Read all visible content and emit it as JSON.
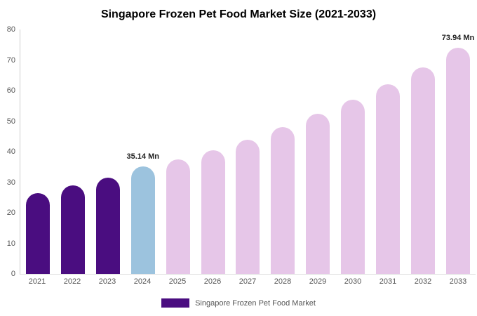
{
  "title": "Singapore Frozen Pet Food Market Size (2021-2033)",
  "legend": {
    "label": "Singapore Frozen Pet Food Market",
    "color": "#4a0d80"
  },
  "colors": {
    "historical": "#4a0d80",
    "current": "#9cc3de",
    "forecast": "#e6c6e8"
  },
  "chart_data": {
    "type": "bar",
    "title": "Singapore Frozen Pet Food Market Size (2021-2033)",
    "categories": [
      "2021",
      "2022",
      "2023",
      "2024",
      "2025",
      "2026",
      "2027",
      "2028",
      "2029",
      "2030",
      "2031",
      "2032",
      "2033"
    ],
    "values": [
      26.5,
      29,
      31.5,
      35.14,
      37.5,
      40.5,
      44,
      48,
      52.5,
      57,
      62,
      67.5,
      73.94
    ],
    "bar_colors": [
      "#4a0d80",
      "#4a0d80",
      "#4a0d80",
      "#9cc3de",
      "#e6c6e8",
      "#e6c6e8",
      "#e6c6e8",
      "#e6c6e8",
      "#e6c6e8",
      "#e6c6e8",
      "#e6c6e8",
      "#e6c6e8",
      "#e6c6e8"
    ],
    "annotations": [
      {
        "index": 3,
        "text": "35.14 Mn"
      },
      {
        "index": 12,
        "text": "73.94 Mn"
      }
    ],
    "xlabel": "",
    "ylabel": "",
    "ylim": [
      0,
      80
    ],
    "yticks": [
      0,
      10,
      20,
      30,
      40,
      50,
      60,
      70,
      80
    ],
    "grid": false,
    "legend_position": "bottom"
  }
}
